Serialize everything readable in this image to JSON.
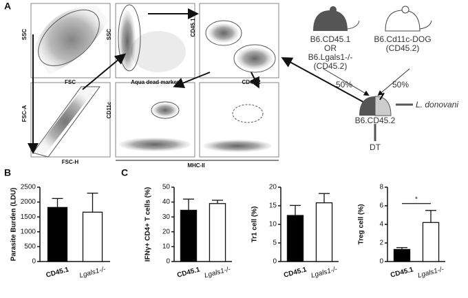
{
  "panel_labels": [
    "A",
    "B",
    "C"
  ],
  "panel_a": {
    "plots": [
      {
        "y_label": "SSC",
        "x_label": "FSC"
      },
      {
        "y_label": "SSC",
        "x_label": "Aqua dead marker"
      },
      {
        "y_label": "CD45.1",
        "x_label": "CD45.2"
      },
      {
        "y_label": "FSC-A",
        "x_label": "FSC-H"
      },
      {
        "y_label": "CD11c"
      }
    ],
    "shared_x_label": "MHC-II"
  },
  "mice": {
    "donor1": [
      "B6.CD45.1",
      "OR",
      "B6.Lgals1-/-",
      "(CD45.2)"
    ],
    "donor2": [
      "B6.Cd11c-DOG",
      "(CD45.2)"
    ],
    "ratio_left": "50%",
    "ratio_right": "50%",
    "pathogen": "L. donovani",
    "recipient": "B6.CD45.2",
    "treatment": "DT"
  },
  "chart_data": [
    {
      "type": "bar",
      "ylabel": "Parasite Burden (LDU)",
      "categories": [
        "CD45.1",
        "Lgals1-/-"
      ],
      "values": [
        1820,
        1660
      ],
      "errors": [
        300,
        640
      ],
      "colors": [
        "#000000",
        "#ffffff"
      ],
      "ylim": [
        0,
        2500
      ],
      "yticks": [
        0,
        500,
        1000,
        1500,
        2000,
        2500
      ]
    },
    {
      "type": "bar",
      "ylabel": "IFNγ+ CD4+ T cells (%)",
      "categories": [
        "CD45.1",
        "Lgals1-/-"
      ],
      "values": [
        34.5,
        39
      ],
      "errors": [
        7.5,
        2.2
      ],
      "colors": [
        "#000000",
        "#ffffff"
      ],
      "ylim": [
        0,
        50
      ],
      "yticks": [
        0,
        10,
        20,
        30,
        40,
        50
      ]
    },
    {
      "type": "bar",
      "ylabel": "Tr1 cell (%)",
      "categories": [
        "CD45.1",
        "Lgals1-/-"
      ],
      "values": [
        12.4,
        15.8
      ],
      "errors": [
        2.7,
        2.5
      ],
      "colors": [
        "#000000",
        "#ffffff"
      ],
      "ylim": [
        0,
        20
      ],
      "yticks": [
        0,
        5,
        10,
        15,
        20
      ]
    },
    {
      "type": "bar",
      "ylabel": "Treg cell (%)",
      "categories": [
        "CD45.1",
        "Lgals1-/-"
      ],
      "values": [
        1.3,
        4.2
      ],
      "errors": [
        0.2,
        1.3
      ],
      "colors": [
        "#000000",
        "#ffffff"
      ],
      "ylim": [
        0,
        8
      ],
      "yticks": [
        0,
        2,
        4,
        6,
        8
      ],
      "annotation": "*"
    }
  ]
}
